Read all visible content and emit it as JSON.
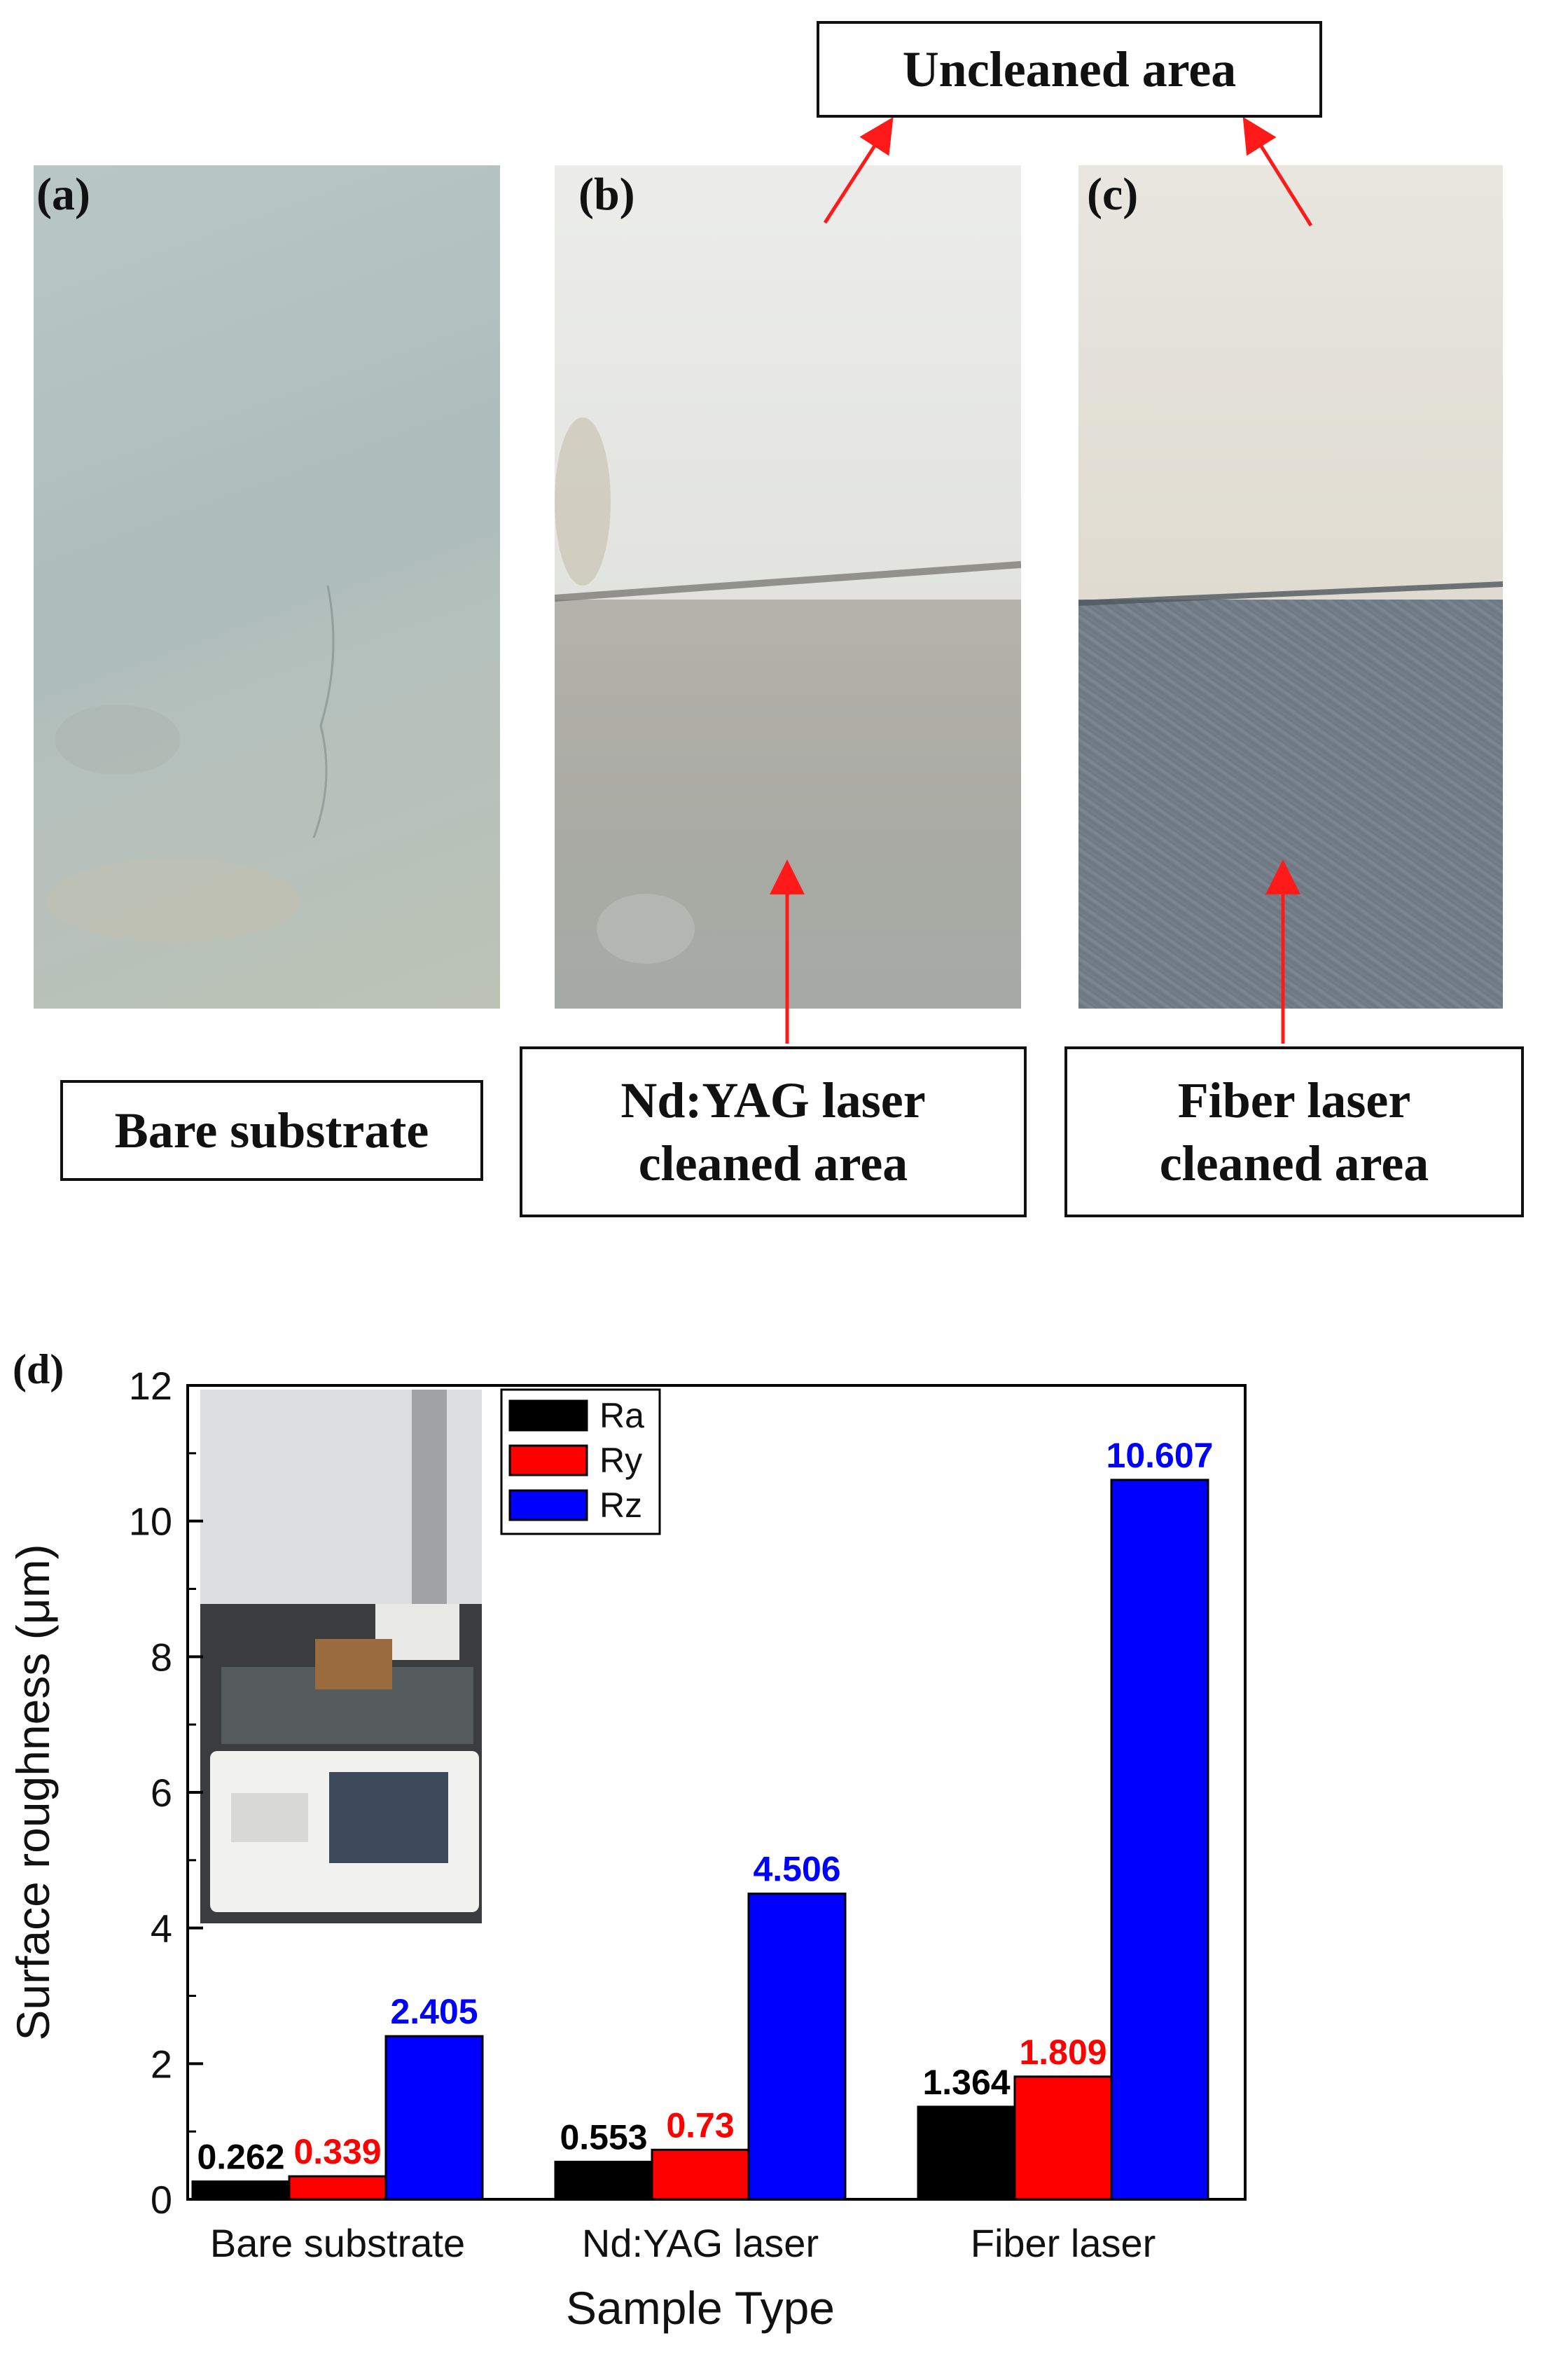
{
  "figure": {
    "panel_a_letter": "(a)",
    "panel_b_letter": "(b)",
    "panel_c_letter": "(c)",
    "panel_d_letter": "(d)",
    "label_uncleaned": "Uncleaned area",
    "label_bare": "Bare substrate",
    "label_ndyag_line1": "Nd:YAG laser",
    "label_ndyag_line2": "cleaned area",
    "label_fiber_line1": "Fiber laser",
    "label_fiber_line2": "cleaned area"
  },
  "colors": {
    "arrow": "#ff1a1a",
    "ra": "#000000",
    "ry": "#ff0000",
    "rz": "#0000ff"
  },
  "chart_data": {
    "type": "bar",
    "categories": [
      "Bare substrate",
      "Nd:YAG laser",
      "Fiber laser"
    ],
    "series": [
      {
        "name": "Ra",
        "values": [
          0.262,
          0.553,
          1.364
        ],
        "labels": [
          "0.262",
          "0.553",
          "1.364"
        ]
      },
      {
        "name": "Ry",
        "values": [
          0.339,
          0.73,
          1.809
        ],
        "labels": [
          "0.339",
          "0.73",
          "1.809"
        ]
      },
      {
        "name": "Rz",
        "values": [
          2.405,
          4.506,
          10.607
        ],
        "labels": [
          "2.405",
          "4.506",
          "10.607"
        ]
      }
    ],
    "xlabel": "Sample Type",
    "ylabel": "Surface roughness (μm)",
    "ylim": [
      0,
      12
    ],
    "yticks": [
      0,
      2,
      4,
      6,
      8,
      10,
      12
    ],
    "legend_position": "top-left",
    "grid": false
  }
}
